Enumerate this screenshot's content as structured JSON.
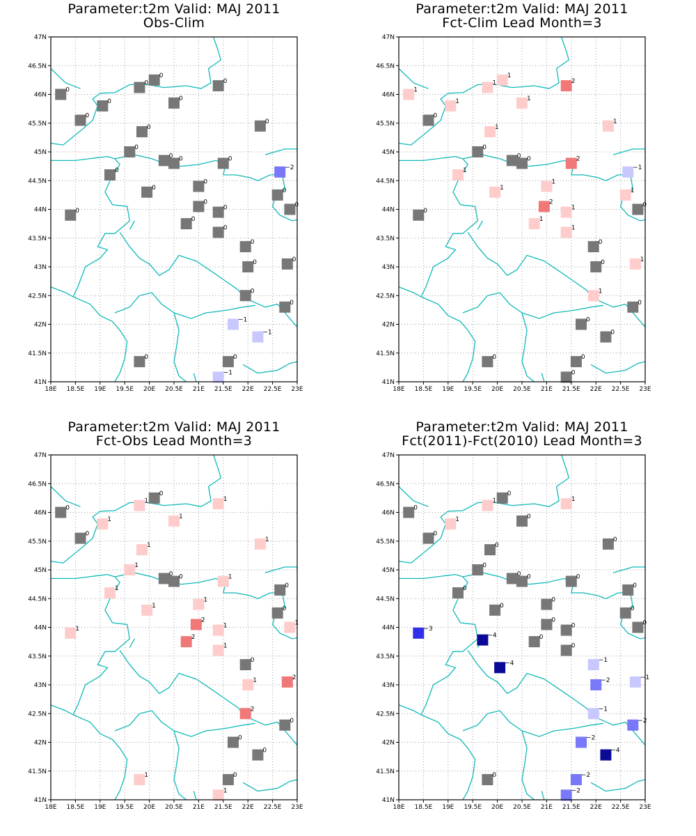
{
  "palette": {
    "0": "#777777",
    "1": "#ffcccc",
    "2": "#f07878",
    "-1": "#c8c8ff",
    "-2": "#7878f8",
    "-3": "#3030e8",
    "-4": "#0a0a96"
  },
  "coast_color": "#10b8b8",
  "lon_ticks": [
    "18E",
    "18.5E",
    "19E",
    "19.5E",
    "20E",
    "20.5E",
    "21E",
    "21.5E",
    "22E",
    "22.5E",
    "23E"
  ],
  "lat_ticks": [
    "41N",
    "41.5N",
    "42N",
    "42.5N",
    "43N",
    "43.5N",
    "44N",
    "44.5N",
    "45N",
    "45.5N",
    "46N",
    "46.5N",
    "47N"
  ],
  "chart_data": [
    {
      "type": "scatter",
      "title_line1": "Parameter:t2m Valid: MAJ 2011",
      "title_line2": "Obs-Clim",
      "xlim": [
        18,
        23
      ],
      "ylim": [
        41,
        47
      ],
      "stations": [
        {
          "lon": 18.2,
          "lat": 46.0,
          "v": 0
        },
        {
          "lon": 18.6,
          "lat": 45.55,
          "v": 0
        },
        {
          "lon": 19.05,
          "lat": 45.8,
          "v": 0
        },
        {
          "lon": 19.8,
          "lat": 46.12,
          "v": 0
        },
        {
          "lon": 20.1,
          "lat": 46.25,
          "v": 0
        },
        {
          "lon": 20.5,
          "lat": 45.85,
          "v": 0
        },
        {
          "lon": 21.4,
          "lat": 46.15,
          "v": 0
        },
        {
          "lon": 19.85,
          "lat": 45.35,
          "v": 0
        },
        {
          "lon": 22.25,
          "lat": 45.45,
          "v": 0
        },
        {
          "lon": 19.6,
          "lat": 45.0,
          "v": 0
        },
        {
          "lon": 20.3,
          "lat": 44.85,
          "v": 0
        },
        {
          "lon": 20.5,
          "lat": 44.8,
          "v": 0
        },
        {
          "lon": 21.5,
          "lat": 44.8,
          "v": 0
        },
        {
          "lon": 22.65,
          "lat": 44.65,
          "v": -2
        },
        {
          "lon": 19.2,
          "lat": 44.6,
          "v": 0
        },
        {
          "lon": 21.0,
          "lat": 44.4,
          "v": 0
        },
        {
          "lon": 19.95,
          "lat": 44.3,
          "v": 0
        },
        {
          "lon": 22.6,
          "lat": 44.25,
          "v": 0
        },
        {
          "lon": 18.4,
          "lat": 43.9,
          "v": 0
        },
        {
          "lon": 21.0,
          "lat": 44.05,
          "v": 0
        },
        {
          "lon": 21.4,
          "lat": 43.95,
          "v": 0
        },
        {
          "lon": 22.85,
          "lat": 44.0,
          "v": 0
        },
        {
          "lon": 20.75,
          "lat": 43.75,
          "v": 0
        },
        {
          "lon": 21.4,
          "lat": 43.6,
          "v": 0
        },
        {
          "lon": 21.95,
          "lat": 43.35,
          "v": 0
        },
        {
          "lon": 22.0,
          "lat": 43.0,
          "v": 0
        },
        {
          "lon": 22.8,
          "lat": 43.05,
          "v": 0
        },
        {
          "lon": 21.95,
          "lat": 42.5,
          "v": 0
        },
        {
          "lon": 22.75,
          "lat": 42.3,
          "v": 0
        },
        {
          "lon": 21.7,
          "lat": 42.0,
          "v": -1
        },
        {
          "lon": 22.2,
          "lat": 41.78,
          "v": -1
        },
        {
          "lon": 19.8,
          "lat": 41.35,
          "v": 0
        },
        {
          "lon": 21.6,
          "lat": 41.35,
          "v": 0
        },
        {
          "lon": 21.4,
          "lat": 41.08,
          "v": -1
        }
      ]
    },
    {
      "type": "scatter",
      "title_line1": "Parameter:t2m Valid: MAJ 2011",
      "title_line2": "Fct-Clim Lead Month=3",
      "xlim": [
        18,
        23
      ],
      "ylim": [
        41,
        47
      ],
      "stations": [
        {
          "lon": 18.2,
          "lat": 46.0,
          "v": 1
        },
        {
          "lon": 18.6,
          "lat": 45.55,
          "v": 0
        },
        {
          "lon": 19.05,
          "lat": 45.8,
          "v": 1
        },
        {
          "lon": 19.8,
          "lat": 46.12,
          "v": 1
        },
        {
          "lon": 20.1,
          "lat": 46.25,
          "v": 1
        },
        {
          "lon": 20.5,
          "lat": 45.85,
          "v": 1
        },
        {
          "lon": 21.4,
          "lat": 46.15,
          "v": 2
        },
        {
          "lon": 19.85,
          "lat": 45.35,
          "v": 1
        },
        {
          "lon": 22.25,
          "lat": 45.45,
          "v": 1
        },
        {
          "lon": 19.6,
          "lat": 45.0,
          "v": 0
        },
        {
          "lon": 20.3,
          "lat": 44.85,
          "v": 0
        },
        {
          "lon": 20.5,
          "lat": 44.8,
          "v": 0
        },
        {
          "lon": 21.5,
          "lat": 44.8,
          "v": 2
        },
        {
          "lon": 22.65,
          "lat": 44.65,
          "v": -1
        },
        {
          "lon": 19.2,
          "lat": 44.6,
          "v": 1
        },
        {
          "lon": 21.0,
          "lat": 44.4,
          "v": 1
        },
        {
          "lon": 19.95,
          "lat": 44.3,
          "v": 1
        },
        {
          "lon": 22.6,
          "lat": 44.25,
          "v": 1
        },
        {
          "lon": 18.4,
          "lat": 43.9,
          "v": 0
        },
        {
          "lon": 20.95,
          "lat": 44.05,
          "v": 2
        },
        {
          "lon": 21.4,
          "lat": 43.95,
          "v": 1
        },
        {
          "lon": 22.85,
          "lat": 44.0,
          "v": 0
        },
        {
          "lon": 20.75,
          "lat": 43.75,
          "v": 1
        },
        {
          "lon": 21.4,
          "lat": 43.6,
          "v": 1
        },
        {
          "lon": 21.95,
          "lat": 43.35,
          "v": 0
        },
        {
          "lon": 22.0,
          "lat": 43.0,
          "v": 0
        },
        {
          "lon": 22.8,
          "lat": 43.05,
          "v": 1
        },
        {
          "lon": 21.95,
          "lat": 42.5,
          "v": 1
        },
        {
          "lon": 22.75,
          "lat": 42.3,
          "v": 0
        },
        {
          "lon": 21.7,
          "lat": 42.0,
          "v": 0
        },
        {
          "lon": 22.2,
          "lat": 41.78,
          "v": 0
        },
        {
          "lon": 19.8,
          "lat": 41.35,
          "v": 0
        },
        {
          "lon": 21.6,
          "lat": 41.35,
          "v": 0
        },
        {
          "lon": 21.4,
          "lat": 41.08,
          "v": 0
        }
      ]
    },
    {
      "type": "scatter",
      "title_line1": "Parameter:t2m Valid: MAJ 2011",
      "title_line2": "Fct-Obs Lead Month=3",
      "xlim": [
        18,
        23
      ],
      "ylim": [
        41,
        47
      ],
      "stations": [
        {
          "lon": 18.2,
          "lat": 46.0,
          "v": 0
        },
        {
          "lon": 18.6,
          "lat": 45.55,
          "v": 0
        },
        {
          "lon": 19.05,
          "lat": 45.8,
          "v": 1
        },
        {
          "lon": 19.8,
          "lat": 46.12,
          "v": 1
        },
        {
          "lon": 20.1,
          "lat": 46.25,
          "v": 0
        },
        {
          "lon": 20.5,
          "lat": 45.85,
          "v": 1
        },
        {
          "lon": 21.4,
          "lat": 46.15,
          "v": 1
        },
        {
          "lon": 19.85,
          "lat": 45.35,
          "v": 1
        },
        {
          "lon": 22.25,
          "lat": 45.45,
          "v": 1
        },
        {
          "lon": 19.6,
          "lat": 45.0,
          "v": 1
        },
        {
          "lon": 20.3,
          "lat": 44.85,
          "v": 0
        },
        {
          "lon": 20.5,
          "lat": 44.8,
          "v": 0
        },
        {
          "lon": 21.5,
          "lat": 44.8,
          "v": 1
        },
        {
          "lon": 22.65,
          "lat": 44.65,
          "v": 0
        },
        {
          "lon": 19.2,
          "lat": 44.6,
          "v": 1
        },
        {
          "lon": 21.0,
          "lat": 44.4,
          "v": 1
        },
        {
          "lon": 19.95,
          "lat": 44.3,
          "v": 1
        },
        {
          "lon": 22.6,
          "lat": 44.25,
          "v": 0
        },
        {
          "lon": 18.4,
          "lat": 43.9,
          "v": 1
        },
        {
          "lon": 20.95,
          "lat": 44.05,
          "v": 2
        },
        {
          "lon": 21.4,
          "lat": 43.95,
          "v": 1
        },
        {
          "lon": 22.85,
          "lat": 44.0,
          "v": 1
        },
        {
          "lon": 20.75,
          "lat": 43.75,
          "v": 2
        },
        {
          "lon": 21.4,
          "lat": 43.6,
          "v": 1
        },
        {
          "lon": 21.95,
          "lat": 43.35,
          "v": 0
        },
        {
          "lon": 22.0,
          "lat": 43.0,
          "v": 1
        },
        {
          "lon": 22.8,
          "lat": 43.05,
          "v": 2
        },
        {
          "lon": 21.95,
          "lat": 42.5,
          "v": 2
        },
        {
          "lon": 22.75,
          "lat": 42.3,
          "v": 0
        },
        {
          "lon": 21.7,
          "lat": 42.0,
          "v": 0
        },
        {
          "lon": 22.2,
          "lat": 41.78,
          "v": 0
        },
        {
          "lon": 19.8,
          "lat": 41.35,
          "v": 1
        },
        {
          "lon": 21.6,
          "lat": 41.35,
          "v": 0
        },
        {
          "lon": 21.4,
          "lat": 41.08,
          "v": 1
        }
      ]
    },
    {
      "type": "scatter",
      "title_line1": "Parameter:t2m Valid: MAJ 2011",
      "title_line2": "Fct(2011)-Fct(2010) Lead Month=3",
      "xlim": [
        18,
        23
      ],
      "ylim": [
        41,
        47
      ],
      "stations": [
        {
          "lon": 18.2,
          "lat": 46.0,
          "v": 0
        },
        {
          "lon": 18.6,
          "lat": 45.55,
          "v": 0
        },
        {
          "lon": 19.05,
          "lat": 45.8,
          "v": 1
        },
        {
          "lon": 19.8,
          "lat": 46.12,
          "v": 1
        },
        {
          "lon": 20.1,
          "lat": 46.25,
          "v": 0
        },
        {
          "lon": 20.5,
          "lat": 45.85,
          "v": 0
        },
        {
          "lon": 21.4,
          "lat": 46.15,
          "v": 1
        },
        {
          "lon": 19.85,
          "lat": 45.35,
          "v": 0
        },
        {
          "lon": 22.25,
          "lat": 45.45,
          "v": 0
        },
        {
          "lon": 19.6,
          "lat": 45.0,
          "v": 0
        },
        {
          "lon": 20.3,
          "lat": 44.85,
          "v": 0
        },
        {
          "lon": 20.5,
          "lat": 44.8,
          "v": 0
        },
        {
          "lon": 21.5,
          "lat": 44.8,
          "v": 0
        },
        {
          "lon": 22.65,
          "lat": 44.65,
          "v": 0
        },
        {
          "lon": 19.2,
          "lat": 44.6,
          "v": 0
        },
        {
          "lon": 21.0,
          "lat": 44.4,
          "v": 0
        },
        {
          "lon": 19.95,
          "lat": 44.3,
          "v": 0
        },
        {
          "lon": 22.6,
          "lat": 44.25,
          "v": 0
        },
        {
          "lon": 18.4,
          "lat": 43.9,
          "v": -3
        },
        {
          "lon": 21.0,
          "lat": 44.05,
          "v": 0
        },
        {
          "lon": 21.4,
          "lat": 43.95,
          "v": 0
        },
        {
          "lon": 22.85,
          "lat": 44.0,
          "v": 0
        },
        {
          "lon": 20.75,
          "lat": 43.75,
          "v": 0
        },
        {
          "lon": 21.4,
          "lat": 43.6,
          "v": 0
        },
        {
          "lon": 19.7,
          "lat": 43.78,
          "v": -4
        },
        {
          "lon": 20.05,
          "lat": 43.3,
          "v": -4
        },
        {
          "lon": 21.95,
          "lat": 43.35,
          "v": -1
        },
        {
          "lon": 22.0,
          "lat": 43.0,
          "v": -2
        },
        {
          "lon": 22.8,
          "lat": 43.05,
          "v": -1
        },
        {
          "lon": 21.95,
          "lat": 42.5,
          "v": -1
        },
        {
          "lon": 22.75,
          "lat": 42.3,
          "v": -2
        },
        {
          "lon": 21.7,
          "lat": 42.0,
          "v": -2
        },
        {
          "lon": 22.2,
          "lat": 41.78,
          "v": -4
        },
        {
          "lon": 19.8,
          "lat": 41.35,
          "v": 0
        },
        {
          "lon": 21.6,
          "lat": 41.35,
          "v": -2
        },
        {
          "lon": 21.4,
          "lat": 41.08,
          "v": -2
        }
      ]
    }
  ]
}
